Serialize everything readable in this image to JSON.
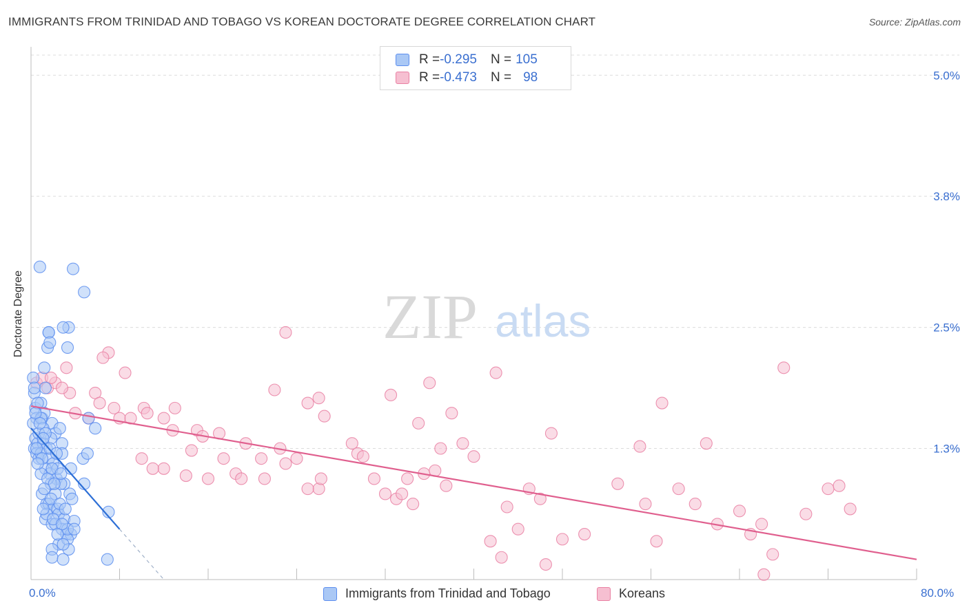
{
  "title": "IMMIGRANTS FROM TRINIDAD AND TOBAGO VS KOREAN DOCTORATE DEGREE CORRELATION CHART",
  "source": "Source: ZipAtlas.com",
  "watermark": {
    "zip": "ZIP",
    "atlas": "atlas"
  },
  "colors": {
    "blue": "#5b8def",
    "blue_fill": "#aac8f5",
    "blue_line": "#2d6fd6",
    "pink": "#e97fa2",
    "pink_fill": "#f6bfd1",
    "pink_line": "#e05f8e",
    "axis_text": "#3a6fd0",
    "grid": "#dcdcdc"
  },
  "legend": {
    "rows": [
      {
        "r_label": "R = ",
        "r_value": "-0.295",
        "n_label": "N = ",
        "n_value": "105",
        "series": "blue"
      },
      {
        "r_label": "R = ",
        "r_value": "-0.473",
        "n_label": "N = ",
        "n_value": "98",
        "series": "pink"
      }
    ]
  },
  "bottom_legend": [
    {
      "label": "Immigrants from Trinidad and Tobago",
      "series": "blue"
    },
    {
      "label": "Koreans",
      "series": "pink"
    }
  ],
  "chart_data": {
    "type": "scatter",
    "title": "IMMIGRANTS FROM TRINIDAD AND TOBAGO VS KOREAN DOCTORATE DEGREE CORRELATION CHART",
    "xlabel": "",
    "ylabel": "Doctorate Degree",
    "xlim": [
      0,
      80
    ],
    "ylim": [
      0,
      5.2
    ],
    "x_tick_labels": [
      "0.0%",
      "80.0%"
    ],
    "y_ticks": [
      {
        "value": 1.3,
        "label": "1.3%"
      },
      {
        "value": 2.5,
        "label": "2.5%"
      },
      {
        "value": 3.8,
        "label": "3.8%"
      },
      {
        "value": 5.0,
        "label": "5.0%"
      }
    ],
    "grid": true,
    "series": [
      {
        "name": "Immigrants from Trinidad and Tobago",
        "color": "#5b8def",
        "trend": {
          "x": [
            0,
            8.0
          ],
          "y": [
            1.5,
            0.5
          ],
          "dashed_to": [
            12.0,
            0.0
          ]
        },
        "points": [
          [
            0.2,
            2.0
          ],
          [
            0.3,
            1.85
          ],
          [
            0.4,
            1.7
          ],
          [
            0.5,
            1.6
          ],
          [
            0.2,
            1.55
          ],
          [
            0.4,
            1.4
          ],
          [
            0.3,
            1.3
          ],
          [
            0.6,
            1.35
          ],
          [
            0.5,
            1.25
          ],
          [
            0.7,
            1.2
          ],
          [
            0.8,
            3.1
          ],
          [
            3.8,
            3.08
          ],
          [
            4.8,
            2.85
          ],
          [
            1.6,
            2.45
          ],
          [
            1.5,
            2.3
          ],
          [
            3.4,
            2.5
          ],
          [
            2.9,
            2.5
          ],
          [
            1.6,
            2.45
          ],
          [
            3.3,
            2.3
          ],
          [
            1.7,
            2.35
          ],
          [
            1.2,
            2.1
          ],
          [
            1.3,
            1.9
          ],
          [
            0.9,
            1.75
          ],
          [
            1.0,
            1.6
          ],
          [
            1.2,
            1.65
          ],
          [
            1.9,
            1.55
          ],
          [
            2.2,
            1.45
          ],
          [
            2.6,
            1.5
          ],
          [
            1.8,
            1.4
          ],
          [
            1.1,
            1.35
          ],
          [
            1.4,
            1.3
          ],
          [
            0.9,
            1.25
          ],
          [
            1.6,
            1.2
          ],
          [
            2.0,
            1.15
          ],
          [
            2.8,
            1.35
          ],
          [
            2.8,
            1.25
          ],
          [
            4.7,
            1.2
          ],
          [
            5.1,
            1.25
          ],
          [
            5.8,
            1.5
          ],
          [
            5.2,
            1.6
          ],
          [
            1.3,
            1.1
          ],
          [
            1.7,
            1.05
          ],
          [
            2.3,
            1.0
          ],
          [
            3.0,
            0.95
          ],
          [
            3.5,
            0.85
          ],
          [
            2.7,
            0.95
          ],
          [
            0.9,
            1.05
          ],
          [
            1.8,
            0.95
          ],
          [
            2.2,
            0.85
          ],
          [
            4.8,
            0.95
          ],
          [
            1.0,
            0.85
          ],
          [
            1.4,
            0.75
          ],
          [
            1.6,
            0.75
          ],
          [
            2.0,
            0.7
          ],
          [
            2.4,
            0.7
          ],
          [
            1.3,
            0.6
          ],
          [
            1.9,
            0.55
          ],
          [
            2.5,
            0.65
          ],
          [
            3.0,
            0.6
          ],
          [
            3.7,
            0.8
          ],
          [
            2.8,
            0.5
          ],
          [
            3.2,
            0.45
          ],
          [
            3.6,
            0.45
          ],
          [
            2.5,
            0.35
          ],
          [
            3.3,
            0.4
          ],
          [
            3.4,
            0.3
          ],
          [
            1.9,
            0.3
          ],
          [
            2.9,
            0.35
          ],
          [
            1.9,
            0.22
          ],
          [
            2.9,
            0.2
          ],
          [
            7.0,
            0.67
          ],
          [
            6.9,
            0.2
          ],
          [
            0.3,
            1.9
          ],
          [
            0.6,
            1.75
          ],
          [
            0.9,
            1.6
          ],
          [
            1.1,
            1.5
          ],
          [
            0.7,
            1.45
          ],
          [
            0.5,
            1.3
          ],
          [
            1.3,
            1.45
          ],
          [
            1.0,
            1.2
          ],
          [
            1.5,
            1.0
          ],
          [
            2.1,
            0.95
          ],
          [
            2.4,
            1.1
          ],
          [
            1.2,
            0.9
          ],
          [
            1.8,
            0.8
          ],
          [
            2.6,
            0.75
          ],
          [
            3.1,
            0.7
          ],
          [
            3.9,
            0.58
          ],
          [
            3.3,
            0.5
          ],
          [
            2.2,
            0.55
          ],
          [
            0.4,
            1.65
          ],
          [
            0.8,
            1.55
          ],
          [
            1.1,
            1.4
          ],
          [
            1.7,
            1.3
          ],
          [
            2.3,
            1.25
          ],
          [
            0.6,
            1.15
          ],
          [
            1.9,
            1.1
          ],
          [
            2.7,
            1.05
          ],
          [
            3.6,
            1.1
          ],
          [
            1.4,
            0.65
          ],
          [
            2.0,
            0.6
          ],
          [
            2.8,
            0.55
          ],
          [
            1.1,
            0.7
          ],
          [
            2.4,
            0.45
          ],
          [
            3.9,
            0.5
          ]
        ]
      },
      {
        "name": "Koreans",
        "color": "#e97fa2",
        "trend": {
          "x": [
            0,
            80
          ],
          "y": [
            1.72,
            0.2
          ]
        },
        "points": [
          [
            0.5,
            1.95
          ],
          [
            1.0,
            2.0
          ],
          [
            1.5,
            1.9
          ],
          [
            2.2,
            1.95
          ],
          [
            3.5,
            1.85
          ],
          [
            4.0,
            1.65
          ],
          [
            5.8,
            1.85
          ],
          [
            5.2,
            1.6
          ],
          [
            6.2,
            1.75
          ],
          [
            7.5,
            1.7
          ],
          [
            8.0,
            1.6
          ],
          [
            9.0,
            1.6
          ],
          [
            10.2,
            1.7
          ],
          [
            10.5,
            1.65
          ],
          [
            12.0,
            1.6
          ],
          [
            12.8,
            1.48
          ],
          [
            13.0,
            1.7
          ],
          [
            14.5,
            1.28
          ],
          [
            15.0,
            1.48
          ],
          [
            15.5,
            1.42
          ],
          [
            17.0,
            1.45
          ],
          [
            17.4,
            1.2
          ],
          [
            18.5,
            1.05
          ],
          [
            19.4,
            1.35
          ],
          [
            20.8,
            1.2
          ],
          [
            22.0,
            1.88
          ],
          [
            22.5,
            1.3
          ],
          [
            23.0,
            1.15
          ],
          [
            24.0,
            1.2
          ],
          [
            26.0,
            0.9
          ],
          [
            25.0,
            0.9
          ],
          [
            26.2,
            1.0
          ],
          [
            21.1,
            1.0
          ],
          [
            19.0,
            1.0
          ],
          [
            16.0,
            1.0
          ],
          [
            14.0,
            1.03
          ],
          [
            12.0,
            1.1
          ],
          [
            11.0,
            1.1
          ],
          [
            10.0,
            1.2
          ],
          [
            8.5,
            2.05
          ],
          [
            7.0,
            2.25
          ],
          [
            6.5,
            2.2
          ],
          [
            3.2,
            2.1
          ],
          [
            2.8,
            1.9
          ],
          [
            1.8,
            2.0
          ],
          [
            23.0,
            2.45
          ],
          [
            25.0,
            1.75
          ],
          [
            26.0,
            1.8
          ],
          [
            26.5,
            1.62
          ],
          [
            29.0,
            1.35
          ],
          [
            29.5,
            1.25
          ],
          [
            30.0,
            1.22
          ],
          [
            31.0,
            1.0
          ],
          [
            32.0,
            0.85
          ],
          [
            33.0,
            0.8
          ],
          [
            34.0,
            1.0
          ],
          [
            35.5,
            1.05
          ],
          [
            37.0,
            1.3
          ],
          [
            38.0,
            1.65
          ],
          [
            39.0,
            1.35
          ],
          [
            36.0,
            1.95
          ],
          [
            32.5,
            1.83
          ],
          [
            34.5,
            0.75
          ],
          [
            33.5,
            0.85
          ],
          [
            35.0,
            1.55
          ],
          [
            36.5,
            1.08
          ],
          [
            37.5,
            0.93
          ],
          [
            40.0,
            1.22
          ],
          [
            42.0,
            2.05
          ],
          [
            41.5,
            0.38
          ],
          [
            43.0,
            0.72
          ],
          [
            44.0,
            0.5
          ],
          [
            45.0,
            0.9
          ],
          [
            46.0,
            0.8
          ],
          [
            47.0,
            1.45
          ],
          [
            48.0,
            0.4
          ],
          [
            50.0,
            0.45
          ],
          [
            53.0,
            0.95
          ],
          [
            55.0,
            1.32
          ],
          [
            55.5,
            0.75
          ],
          [
            56.5,
            0.38
          ],
          [
            57.0,
            1.75
          ],
          [
            58.5,
            0.9
          ],
          [
            60.0,
            0.75
          ],
          [
            61.0,
            1.35
          ],
          [
            62.0,
            0.55
          ],
          [
            64.0,
            0.68
          ],
          [
            65.0,
            0.45
          ],
          [
            67.0,
            0.25
          ],
          [
            68.0,
            2.1
          ],
          [
            70.0,
            0.65
          ],
          [
            72.0,
            0.9
          ],
          [
            73.0,
            0.93
          ],
          [
            74.0,
            0.7
          ],
          [
            66.0,
            0.55
          ],
          [
            42.5,
            0.22
          ],
          [
            46.5,
            0.15
          ],
          [
            66.2,
            0.05
          ]
        ]
      }
    ]
  }
}
